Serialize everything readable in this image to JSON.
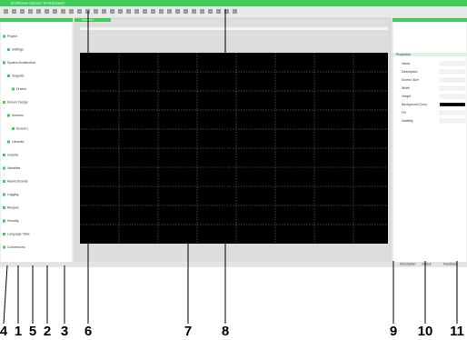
{
  "header": {
    "title": "EcoStruxure Operator Terminal Expert",
    "tab": "Screen1"
  },
  "tree": [
    "Project",
    "Settings",
    "System Architecture",
    "Target01",
    "Drivers",
    "Screen Design",
    "Screens",
    "Screen1",
    "Libraries",
    "Graphic",
    "Variables",
    "Alarms/Events",
    "Logging",
    "Recipes",
    "Security",
    "Language Table",
    "Conversions"
  ],
  "properties": {
    "title": "Properties",
    "rows": [
      "Name",
      "Description",
      "Screen Size",
      "Width",
      "Height",
      "Background Color",
      "Fill",
      "Visibility"
    ]
  },
  "bottom_tabs": [
    "Description",
    "Output",
    "Feedback"
  ],
  "callouts": [
    "4",
    "1",
    "5",
    "2",
    "3",
    "6",
    "7",
    "8",
    "9",
    "10",
    "11"
  ]
}
